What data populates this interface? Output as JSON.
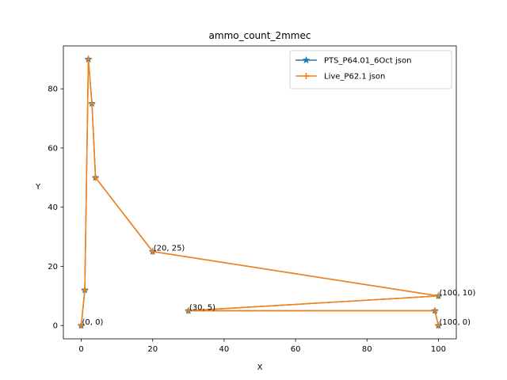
{
  "chart_data": {
    "type": "line",
    "title": "ammo_count_2mmec",
    "xlabel": "X",
    "ylabel": "Y",
    "xlim": [
      -5,
      105
    ],
    "ylim": [
      -4.5,
      94.5
    ],
    "xticks": [
      0,
      20,
      40,
      60,
      80,
      100
    ],
    "yticks": [
      0,
      20,
      40,
      60,
      80
    ],
    "grid": false,
    "legend_position": "top-right",
    "series": [
      {
        "name": "PTS_P64.01_6Oct json",
        "color": "#1f77b4",
        "marker": "star",
        "x": [
          0,
          1,
          2,
          3,
          4,
          20,
          100,
          30,
          99,
          100
        ],
        "y": [
          0,
          12,
          90,
          75,
          50,
          25,
          10,
          5,
          5,
          0
        ]
      },
      {
        "name": "Live_P62.1 json",
        "color": "#ff7f0e",
        "marker": "plus",
        "x": [
          0,
          1,
          2,
          3,
          4,
          20,
          100,
          30,
          99,
          100
        ],
        "y": [
          0,
          12,
          90,
          75,
          50,
          25,
          10,
          5,
          5,
          0
        ]
      }
    ],
    "annotations": [
      {
        "text": "(0, 0)",
        "x": 0,
        "y": 0
      },
      {
        "text": "(20, 25)",
        "x": 20,
        "y": 25
      },
      {
        "text": "(100, 10)",
        "x": 100,
        "y": 10
      },
      {
        "text": "(30, 5)",
        "x": 30,
        "y": 5
      },
      {
        "text": "(100, 0)",
        "x": 100,
        "y": 0
      }
    ]
  }
}
